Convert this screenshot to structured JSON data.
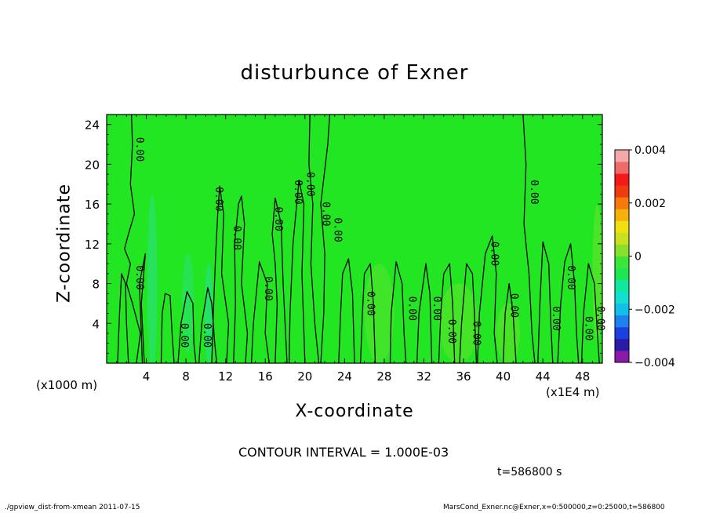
{
  "chart_data": {
    "type": "heatmap",
    "title": "disturbunce of Exner",
    "xlabel": "X-coordinate",
    "ylabel": "Z-coordinate",
    "x_unit_left": "(x1000 m)",
    "x_unit_right": "(x1E4 m)",
    "xlim": [
      0,
      50
    ],
    "ylim": [
      0,
      25
    ],
    "x_ticks": [
      4,
      8,
      12,
      16,
      20,
      24,
      28,
      32,
      36,
      40,
      44,
      48
    ],
    "y_ticks": [
      4,
      8,
      12,
      16,
      20,
      24
    ],
    "colorbar": {
      "min": -0.004,
      "max": 0.004,
      "tick_values": [
        0.004,
        0.002,
        0,
        -0.002,
        -0.004
      ],
      "tick_labels": [
        "0.004",
        "0.002",
        "0",
        "−0.002",
        "−0.004"
      ],
      "colors": [
        "#8b1aa8",
        "#2a1aa8",
        "#1e3fe0",
        "#1f80f0",
        "#11c0e8",
        "#11e0d0",
        "#10e8a0",
        "#1ee650",
        "#3ae63a",
        "#88e02a",
        "#c8e020",
        "#f0e010",
        "#f5b00a",
        "#f57a0a",
        "#f03a10",
        "#f51a1a",
        "#f06a6a",
        "#f5a8a8"
      ]
    },
    "background_color": "#22e622",
    "contour_interval": "CONTOUR INTERVAL = 1.000E-03",
    "contour_labels": [
      {
        "x": 3.0,
        "z": 21.5,
        "text": "0.00"
      },
      {
        "x": 3.0,
        "z": 8.6,
        "text": "0.00"
      },
      {
        "x": 11.0,
        "z": 16.5,
        "text": "0.00"
      },
      {
        "x": 12.8,
        "z": 12.6,
        "text": "0.00"
      },
      {
        "x": 7.5,
        "z": 2.8,
        "text": "0.00"
      },
      {
        "x": 9.8,
        "z": 2.8,
        "text": "0.00"
      },
      {
        "x": 16.0,
        "z": 7.5,
        "text": "0.00"
      },
      {
        "x": 17.0,
        "z": 14.5,
        "text": "0.00"
      },
      {
        "x": 19.0,
        "z": 17.2,
        "text": "0.00"
      },
      {
        "x": 20.2,
        "z": 18.0,
        "text": "0.00"
      },
      {
        "x": 21.8,
        "z": 15.0,
        "text": "0.00"
      },
      {
        "x": 23.0,
        "z": 13.4,
        "text": "0.00"
      },
      {
        "x": 26.3,
        "z": 6.0,
        "text": "0.00"
      },
      {
        "x": 30.5,
        "z": 5.5,
        "text": "0.00"
      },
      {
        "x": 33.0,
        "z": 5.5,
        "text": "0.00"
      },
      {
        "x": 34.5,
        "z": 3.2,
        "text": "0.00"
      },
      {
        "x": 37.0,
        "z": 3.0,
        "text": "0.00"
      },
      {
        "x": 38.8,
        "z": 11.0,
        "text": "0.00"
      },
      {
        "x": 40.8,
        "z": 5.8,
        "text": "0.00"
      },
      {
        "x": 42.8,
        "z": 17.2,
        "text": "0.00"
      },
      {
        "x": 45.0,
        "z": 4.5,
        "text": "0.00"
      },
      {
        "x": 46.5,
        "z": 8.6,
        "text": "0.00"
      },
      {
        "x": 48.3,
        "z": 3.5,
        "text": "0.00"
      },
      {
        "x": 49.5,
        "z": 4.5,
        "text": "0.00"
      }
    ],
    "contour_lines": [
      [
        [
          2.5,
          25
        ],
        [
          2.6,
          22
        ],
        [
          2.4,
          18
        ],
        [
          2.8,
          15
        ],
        [
          2.2,
          13
        ],
        [
          1.8,
          11.5
        ],
        [
          2.4,
          10
        ],
        [
          2.0,
          8
        ],
        [
          2.6,
          6
        ],
        [
          3.4,
          3
        ],
        [
          3.0,
          0
        ]
      ],
      [
        [
          1.1,
          0
        ],
        [
          1.3,
          5
        ],
        [
          1.5,
          9
        ],
        [
          1.9,
          8
        ],
        [
          2.0,
          4
        ],
        [
          2.2,
          0
        ]
      ],
      [
        [
          3.6,
          0
        ],
        [
          3.5,
          3
        ],
        [
          3.3,
          8
        ],
        [
          3.9,
          11
        ],
        [
          3.5,
          6
        ],
        [
          3.8,
          0
        ]
      ],
      [
        [
          5.5,
          0
        ],
        [
          5.6,
          5
        ],
        [
          5.9,
          7
        ],
        [
          6.4,
          6.8
        ],
        [
          6.6,
          3
        ],
        [
          6.8,
          0
        ]
      ],
      [
        [
          7.2,
          0
        ],
        [
          7.5,
          4
        ],
        [
          8.1,
          7.2
        ],
        [
          8.7,
          6
        ],
        [
          8.8,
          2
        ],
        [
          9.0,
          0
        ]
      ],
      [
        [
          9.3,
          0
        ],
        [
          9.6,
          4
        ],
        [
          10.2,
          7.6
        ],
        [
          10.6,
          6
        ],
        [
          10.9,
          2
        ],
        [
          11.1,
          0
        ]
      ],
      [
        [
          10.6,
          0
        ],
        [
          10.8,
          6
        ],
        [
          11.0,
          11
        ],
        [
          11.2,
          15
        ],
        [
          11.4,
          17.8
        ],
        [
          11.8,
          15
        ],
        [
          11.6,
          9
        ],
        [
          12.3,
          4
        ],
        [
          12.1,
          0
        ]
      ],
      [
        [
          12.8,
          0
        ],
        [
          13.0,
          6
        ],
        [
          12.9,
          12
        ],
        [
          13.3,
          16
        ],
        [
          13.6,
          16.8
        ],
        [
          13.9,
          14
        ],
        [
          13.6,
          8
        ],
        [
          14.2,
          3
        ],
        [
          14.0,
          0
        ]
      ],
      [
        [
          14.6,
          0
        ],
        [
          14.8,
          4
        ],
        [
          15.4,
          10.2
        ],
        [
          16.2,
          8
        ],
        [
          16.0,
          3
        ],
        [
          16.4,
          0
        ]
      ],
      [
        [
          17.0,
          0
        ],
        [
          17.2,
          6
        ],
        [
          17.0,
          10
        ],
        [
          16.7,
          13
        ],
        [
          17.0,
          16.6
        ],
        [
          17.6,
          14
        ],
        [
          17.8,
          8
        ],
        [
          18.2,
          0
        ]
      ],
      [
        [
          18.4,
          0
        ],
        [
          18.5,
          5
        ],
        [
          18.8,
          12
        ],
        [
          19.4,
          18.4
        ],
        [
          19.9,
          16
        ],
        [
          19.7,
          9
        ],
        [
          20.0,
          0
        ]
      ],
      [
        [
          20.5,
          25
        ],
        [
          20.4,
          20
        ],
        [
          20.8,
          16
        ],
        [
          20.6,
          10
        ],
        [
          21.0,
          4
        ],
        [
          21.4,
          0
        ]
      ],
      [
        [
          21.6,
          0
        ],
        [
          21.9,
          5
        ],
        [
          22.0,
          11
        ],
        [
          21.6,
          16
        ],
        [
          22.3,
          22
        ],
        [
          22.5,
          25
        ]
      ],
      [
        [
          23.4,
          0
        ],
        [
          23.6,
          5
        ],
        [
          23.8,
          9
        ],
        [
          24.4,
          10.5
        ],
        [
          24.8,
          7
        ],
        [
          25.0,
          0
        ]
      ],
      [
        [
          25.6,
          0
        ],
        [
          25.8,
          5
        ],
        [
          26.0,
          9
        ],
        [
          26.6,
          10
        ],
        [
          26.9,
          6
        ],
        [
          27.1,
          0
        ]
      ],
      [
        [
          28.6,
          0
        ],
        [
          28.7,
          5
        ],
        [
          29.2,
          10.2
        ],
        [
          29.8,
          8
        ],
        [
          30.0,
          3
        ],
        [
          30.2,
          0
        ]
      ],
      [
        [
          31.3,
          0
        ],
        [
          31.5,
          5
        ],
        [
          32.2,
          10
        ],
        [
          32.6,
          7
        ],
        [
          32.8,
          0
        ]
      ],
      [
        [
          33.5,
          0
        ],
        [
          33.7,
          5
        ],
        [
          34.0,
          9
        ],
        [
          34.6,
          10
        ],
        [
          34.9,
          6
        ],
        [
          35.1,
          0
        ]
      ],
      [
        [
          35.6,
          0
        ],
        [
          35.8,
          4
        ],
        [
          36.3,
          10
        ],
        [
          36.9,
          9
        ],
        [
          37.1,
          5
        ],
        [
          37.3,
          0
        ]
      ],
      [
        [
          37.4,
          0
        ],
        [
          37.6,
          5
        ],
        [
          38.2,
          11
        ],
        [
          38.9,
          12.8
        ],
        [
          39.3,
          9
        ],
        [
          39.1,
          3
        ],
        [
          39.4,
          0
        ]
      ],
      [
        [
          40.0,
          0
        ],
        [
          40.2,
          5
        ],
        [
          40.6,
          8
        ],
        [
          41.0,
          5
        ],
        [
          41.3,
          0
        ]
      ],
      [
        [
          42.0,
          25
        ],
        [
          42.3,
          20
        ],
        [
          42.1,
          14
        ],
        [
          42.6,
          9
        ],
        [
          42.9,
          3
        ],
        [
          43.2,
          0
        ]
      ],
      [
        [
          43.5,
          0
        ],
        [
          43.7,
          6
        ],
        [
          44.0,
          12.2
        ],
        [
          44.6,
          10
        ],
        [
          44.8,
          4
        ],
        [
          45.0,
          0
        ]
      ],
      [
        [
          45.5,
          0
        ],
        [
          45.8,
          6
        ],
        [
          46.2,
          10.2
        ],
        [
          46.8,
          12
        ],
        [
          47.2,
          8
        ],
        [
          47.4,
          3
        ],
        [
          47.6,
          0
        ]
      ],
      [
        [
          47.9,
          0
        ],
        [
          48.1,
          5
        ],
        [
          48.6,
          10
        ],
        [
          49.2,
          8
        ],
        [
          49.5,
          3
        ],
        [
          49.7,
          0
        ]
      ]
    ]
  },
  "time_label": "t=586800 s",
  "footer_left": "./gpview_dist-from-xmean  2011-07-15",
  "footer_right": "MarsCond_Exner.nc@Exner,x=0:500000,z=0:25000,t=586800"
}
